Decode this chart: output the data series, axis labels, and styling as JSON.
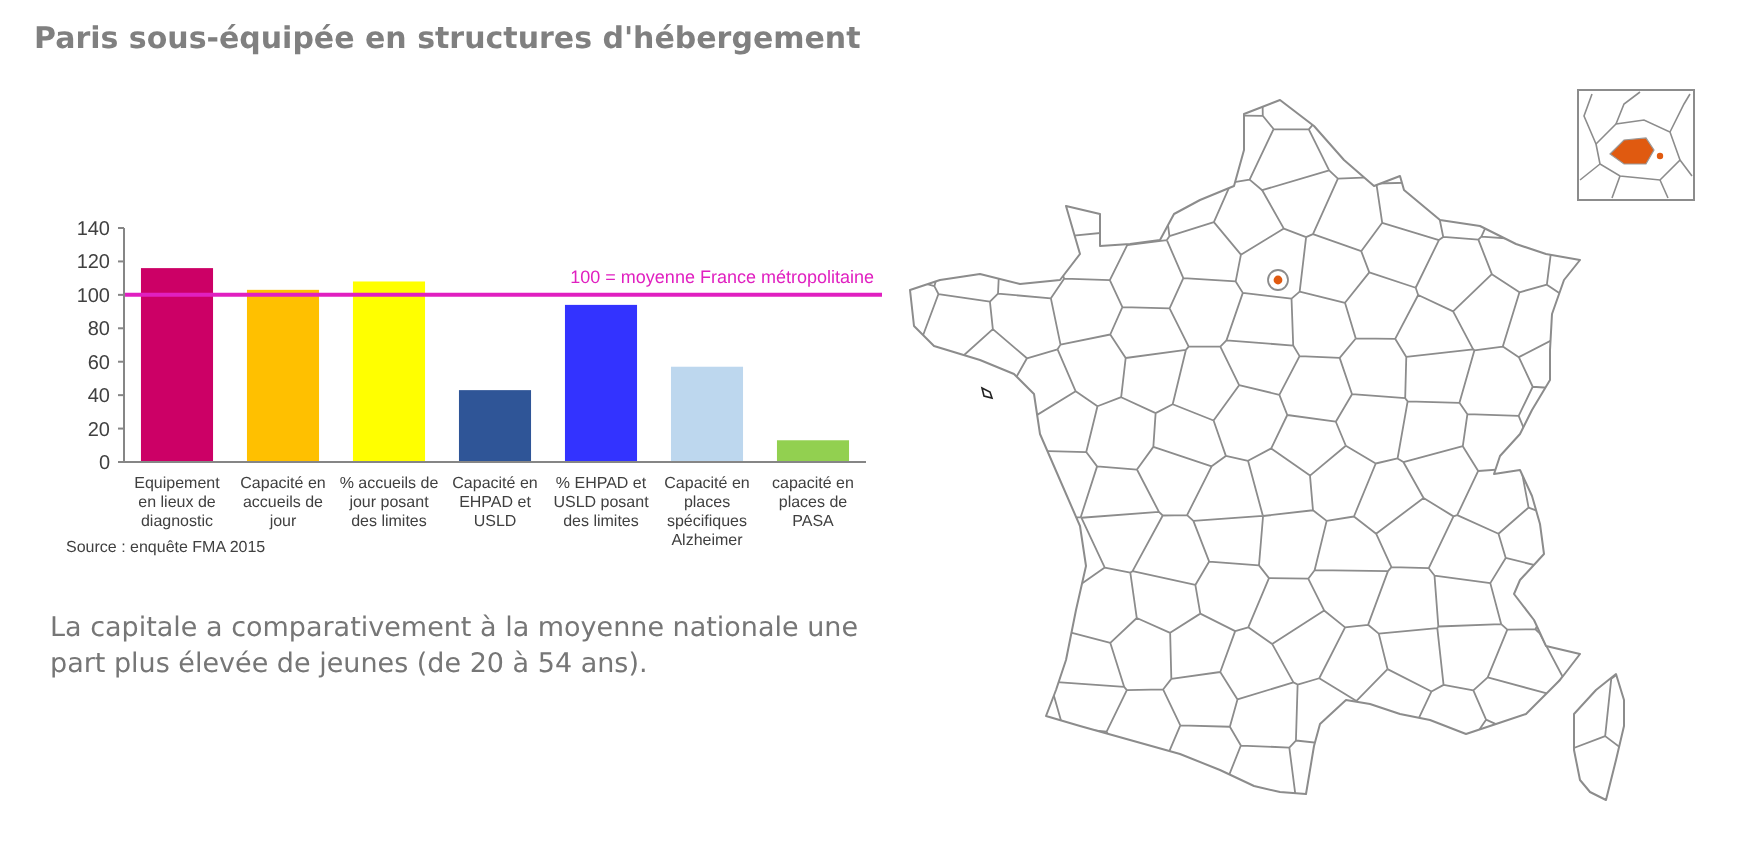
{
  "chart_data": {
    "type": "bar",
    "title": "Paris sous-équipée en structures d'hébergement",
    "categories": [
      "Equipement en lieux de diagnostic",
      "Capacité en accueils de jour",
      "% accueils de jour posant des limites",
      "Capacité en EHPAD et USLD",
      "% EHPAD et USLD posant des limites",
      "Capacité en places spécifiques Alzheimer",
      "capacité en places de PASA"
    ],
    "values": [
      116,
      103,
      108,
      43,
      94,
      57,
      13
    ],
    "colors": [
      "#cc0066",
      "#ffc000",
      "#ffff00",
      "#2f5597",
      "#3333ff",
      "#bdd7ee",
      "#92d050"
    ],
    "ylim": [
      0,
      140
    ],
    "yticks": [
      0,
      20,
      40,
      60,
      80,
      100,
      120,
      140
    ],
    "ref_lines": [
      {
        "axis": "y",
        "value": 100,
        "label": "100 = moyenne France métropolitaine",
        "color": "#e020c0"
      }
    ],
    "annotations": [
      "Source : enquête FMA 2015",
      "La capitale a comparativement à la moyenne nationale une part plus élevée de jeunes (de 20 à 54 ans)."
    ]
  }
}
